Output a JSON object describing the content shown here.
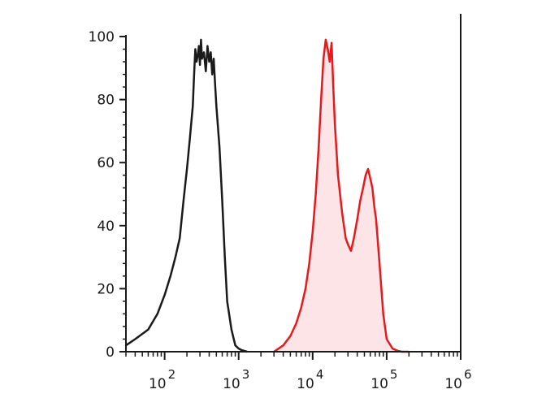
{
  "chart_data": {
    "type": "line",
    "title": "",
    "xlabel": "",
    "ylabel": "",
    "x_scale": "log",
    "xlim": [
      30,
      1000000
    ],
    "ylim": [
      0,
      100
    ],
    "grid": false,
    "legend": "none",
    "y_ticks": [
      "0",
      "20",
      "40",
      "60",
      "80",
      "100"
    ],
    "x_ticks": [
      {
        "base": "10",
        "exp": "2",
        "value": 100
      },
      {
        "base": "10",
        "exp": "3",
        "value": 1000
      },
      {
        "base": "10",
        "exp": "4",
        "value": 10000
      },
      {
        "base": "10",
        "exp": "5",
        "value": 100000
      },
      {
        "base": "10",
        "exp": "6",
        "value": 1000000
      }
    ],
    "series": [
      {
        "color": "#1a1a1a",
        "fill": false,
        "x": [
          30,
          40,
          60,
          80,
          100,
          120,
          140,
          160,
          180,
          200,
          220,
          240,
          250,
          260,
          270,
          280,
          290,
          300,
          310,
          320,
          340,
          360,
          380,
          400,
          420,
          440,
          460,
          480,
          500,
          550,
          600,
          650,
          700,
          800,
          900,
          1000,
          1100,
          1300
        ],
        "y": [
          2,
          4,
          7,
          12,
          18,
          24,
          30,
          36,
          48,
          58,
          68,
          78,
          88,
          96,
          92,
          94,
          97,
          91,
          99,
          93,
          95,
          89,
          97,
          92,
          95,
          88,
          93,
          85,
          78,
          65,
          48,
          30,
          16,
          7,
          2,
          1,
          0.5,
          0
        ]
      },
      {
        "color": "#e41a1c",
        "fill": true,
        "fill_color": "#fde4e6",
        "x": [
          3000,
          4000,
          5000,
          6000,
          7000,
          8000,
          9000,
          10000,
          11000,
          12000,
          13000,
          14000,
          15000,
          16000,
          17000,
          18000,
          19000,
          20000,
          22000,
          25000,
          28000,
          30000,
          33000,
          36000,
          40000,
          44000,
          48000,
          52000,
          56000,
          60000,
          64000,
          68000,
          72000,
          80000,
          90000,
          100000,
          120000,
          140000,
          160000,
          200000
        ],
        "y": [
          0,
          2,
          5,
          9,
          14,
          20,
          28,
          38,
          50,
          64,
          80,
          93,
          99,
          96,
          92,
          98,
          84,
          72,
          56,
          44,
          36,
          34,
          32,
          36,
          42,
          48,
          52,
          56,
          58,
          55,
          52,
          46,
          42,
          28,
          12,
          4,
          1,
          0.3,
          0,
          0
        ]
      }
    ]
  }
}
